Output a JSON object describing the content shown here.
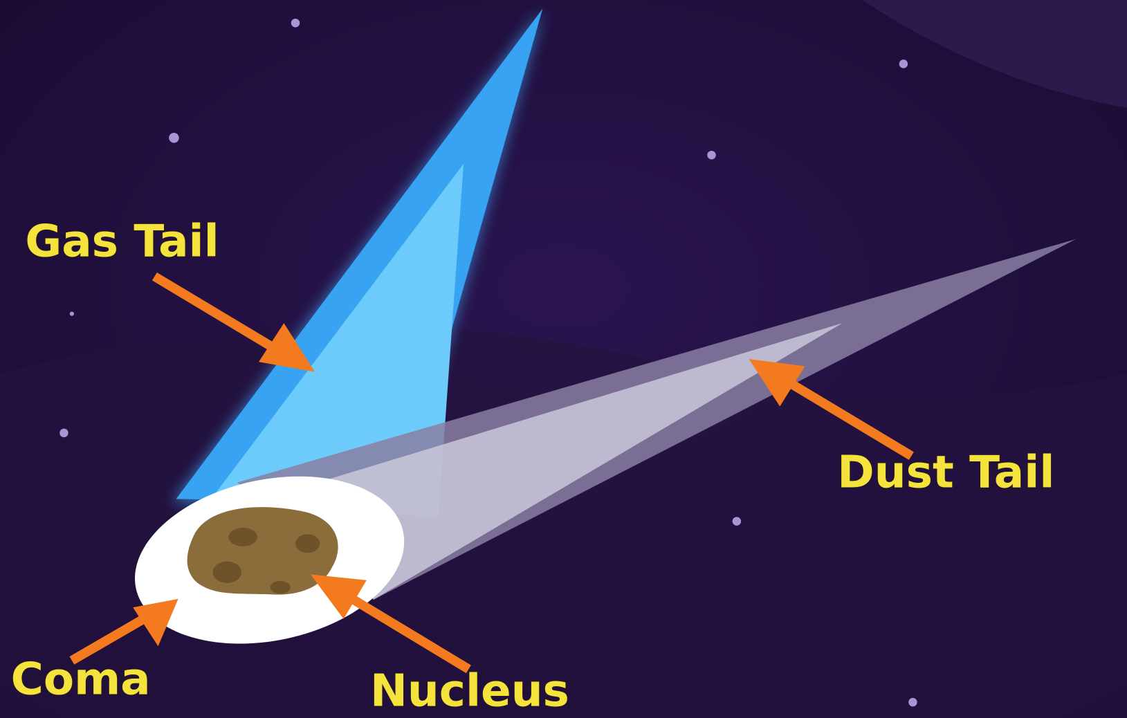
{
  "nodes": [
    {
      "label": "Gas Tail"
    },
    {
      "label": "Dust Tail"
    },
    {
      "label": "Coma"
    },
    {
      "label": "Nucleus"
    }
  ]
}
